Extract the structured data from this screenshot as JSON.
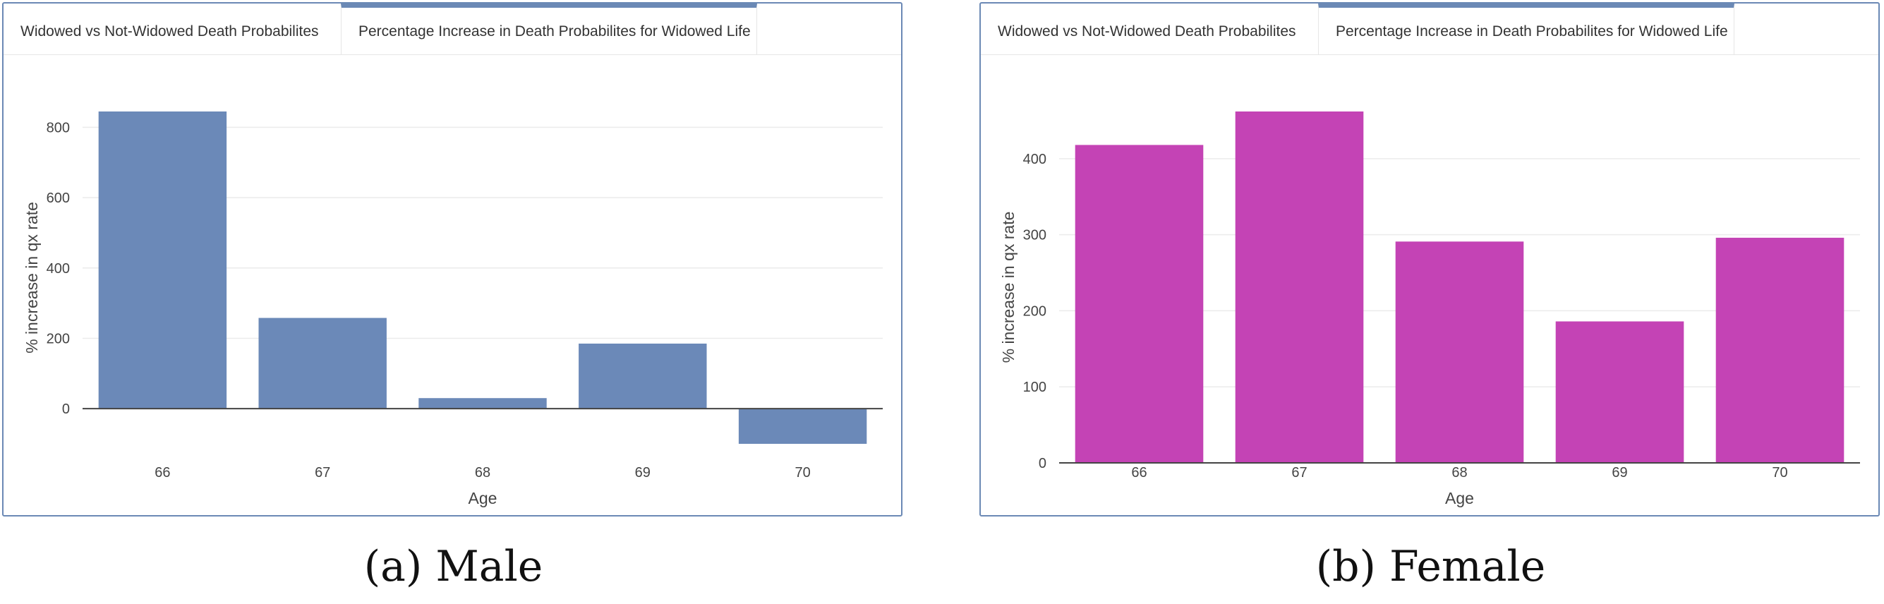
{
  "tabs": {
    "tab1": "Widowed vs Not-Widowed Death Probabilites",
    "tab2": "Percentage Increase in Death Probabilites for Widowed Life"
  },
  "captions": {
    "male": "(a) Male",
    "female": "(b) Female"
  },
  "colors": {
    "male_bar": "#6b89b8",
    "female_bar": "#c443b5",
    "border": "#6b89b5"
  },
  "chart_data": [
    {
      "type": "bar",
      "title": "",
      "xlabel": "Age",
      "ylabel": "% increase in qx rate",
      "categories": [
        "66",
        "67",
        "68",
        "69",
        "70"
      ],
      "values": [
        845,
        258,
        30,
        185,
        -100
      ],
      "ylim": [
        -100,
        845
      ],
      "yticks": [
        0,
        200,
        400,
        600,
        800
      ],
      "grid": true
    },
    {
      "type": "bar",
      "title": "",
      "xlabel": "Age",
      "ylabel": "% increase in qx rate",
      "categories": [
        "66",
        "67",
        "68",
        "69",
        "70"
      ],
      "values": [
        418,
        462,
        291,
        186,
        296
      ],
      "ylim": [
        0,
        462
      ],
      "yticks": [
        0,
        100,
        200,
        300,
        400
      ],
      "grid": true
    }
  ]
}
